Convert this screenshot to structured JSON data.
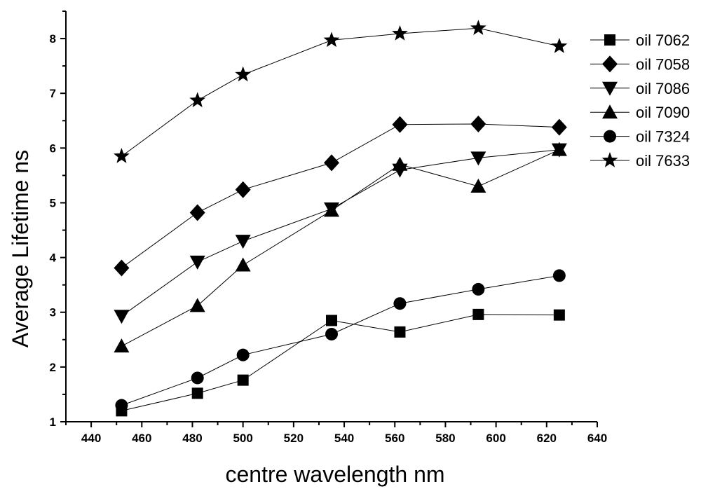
{
  "chart_data": {
    "type": "line",
    "title": "",
    "xlabel": "centre wavelength nm",
    "ylabel": "Average Lifetime ns",
    "xlim": [
      430,
      640
    ],
    "ylim": [
      1,
      8.5
    ],
    "x_ticks": [
      "440",
      "460",
      "480",
      "500",
      "520",
      "540",
      "560",
      "580",
      "600",
      "620",
      "640"
    ],
    "y_ticks": [
      "1",
      "2",
      "3",
      "4",
      "5",
      "6",
      "7",
      "8"
    ],
    "x": [
      452,
      482,
      500,
      535,
      562,
      593,
      625
    ],
    "grid": false,
    "legend_position": "top-right",
    "series": [
      {
        "name": "oil 7062",
        "marker": "square",
        "values": [
          1.2,
          1.52,
          1.76,
          2.85,
          2.64,
          2.96,
          2.95
        ]
      },
      {
        "name": "oil 7058",
        "marker": "diamond",
        "values": [
          3.81,
          4.82,
          5.24,
          5.73,
          6.43,
          6.44,
          6.38
        ]
      },
      {
        "name": "oil 7086",
        "marker": "triangle-down",
        "values": [
          2.93,
          3.92,
          4.3,
          4.89,
          5.6,
          5.82,
          5.97
        ]
      },
      {
        "name": "oil 7090",
        "marker": "triangle-up",
        "values": [
          2.38,
          3.12,
          3.86,
          4.86,
          5.7,
          5.3,
          5.97
        ]
      },
      {
        "name": "oil 7324",
        "marker": "circle",
        "values": [
          1.3,
          1.8,
          2.22,
          2.6,
          3.16,
          3.42,
          3.67
        ]
      },
      {
        "name": "oil 7633",
        "marker": "star",
        "values": [
          5.85,
          6.87,
          7.34,
          7.97,
          8.09,
          8.19,
          7.86
        ]
      }
    ]
  }
}
